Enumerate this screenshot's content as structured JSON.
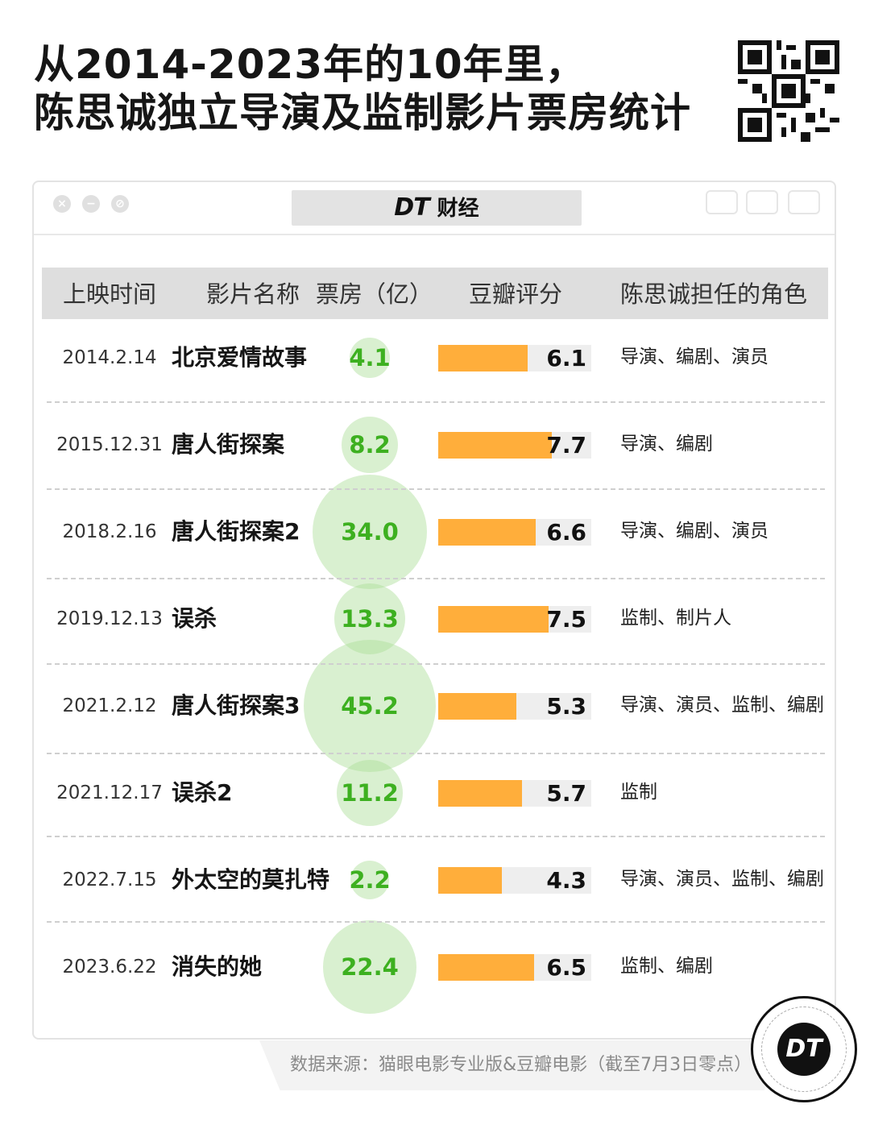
{
  "title": {
    "line1": "从2014-2023年的10年里，",
    "line2": "陈思诚独立导演及监制影片票房统计"
  },
  "window": {
    "brand_dt": "DT",
    "brand_cn": "财经"
  },
  "columns": {
    "date": "上映时间",
    "film": "影片名称",
    "box_office": "票房（亿）",
    "rating": "豆瓣评分",
    "roles": "陈思诚担任的角色"
  },
  "chart_data": {
    "type": "table",
    "title": "从2014-2023年的10年里，陈思诚独立导演及监制影片票房统计",
    "rating_range": [
      0,
      10
    ],
    "rows": [
      {
        "date": "2014.2.14",
        "film": "北京爱情故事",
        "box_office": 4.1,
        "box_office_label": "4.1",
        "rating": 6.1,
        "rating_label": "6.1",
        "roles": "导演、编剧、演员"
      },
      {
        "date": "2015.12.31",
        "film": "唐人街探案",
        "box_office": 8.2,
        "box_office_label": "8.2",
        "rating": 7.7,
        "rating_label": "7.7",
        "roles": "导演、编剧"
      },
      {
        "date": "2018.2.16",
        "film": "唐人街探案2",
        "box_office": 34.0,
        "box_office_label": "34.0",
        "rating": 6.6,
        "rating_label": "6.6",
        "roles": "导演、编剧、演员"
      },
      {
        "date": "2019.12.13",
        "film": "误杀",
        "box_office": 13.3,
        "box_office_label": "13.3",
        "rating": 7.5,
        "rating_label": "7.5",
        "roles": "监制、制片人"
      },
      {
        "date": "2021.2.12",
        "film": "唐人街探案3",
        "box_office": 45.2,
        "box_office_label": "45.2",
        "rating": 5.3,
        "rating_label": "5.3",
        "roles": "导演、演员、监制、编剧"
      },
      {
        "date": "2021.12.17",
        "film": "误杀2",
        "box_office": 11.2,
        "box_office_label": "11.2",
        "rating": 5.7,
        "rating_label": "5.7",
        "roles": "监制"
      },
      {
        "date": "2022.7.15",
        "film": "外太空的莫扎特",
        "box_office": 2.2,
        "box_office_label": "2.2",
        "rating": 4.3,
        "rating_label": "4.3",
        "roles": "导演、演员、监制、编剧"
      },
      {
        "date": "2023.6.22",
        "film": "消失的她",
        "box_office": 22.4,
        "box_office_label": "22.4",
        "rating": 6.5,
        "rating_label": "6.5",
        "roles": "监制、编剧"
      }
    ]
  },
  "source": "数据来源：猫眼电影专业版&豆瓣电影（截至7月3日零点）",
  "logo_text": "DT",
  "colors": {
    "bubble": "#aade96",
    "box_office_text": "#3db020",
    "rating_bar": "#ffae3b",
    "rating_track": "#eeeeee",
    "header_bg": "#dedede"
  }
}
